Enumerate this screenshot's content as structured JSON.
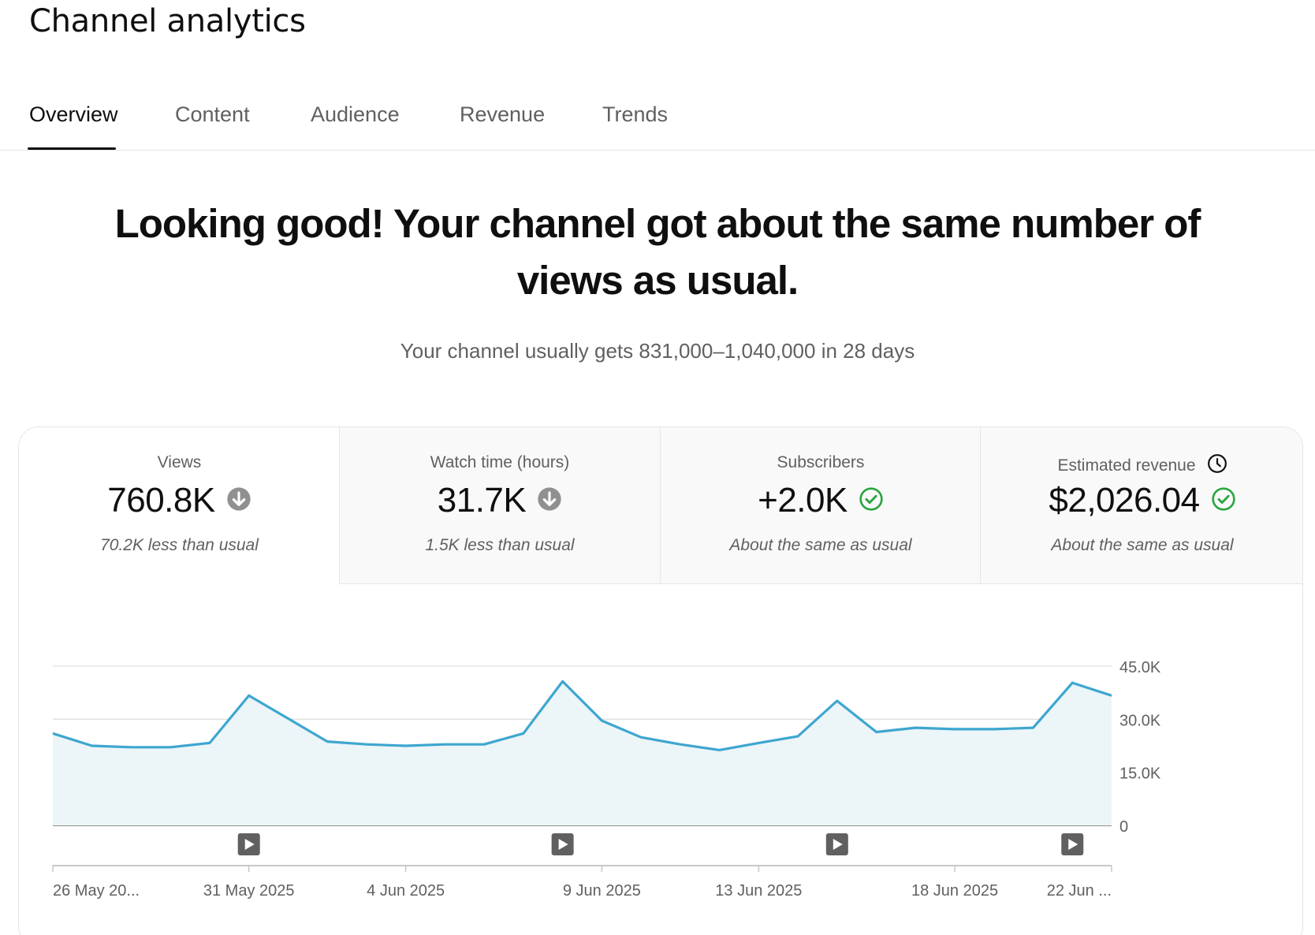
{
  "page": {
    "title": "Channel analytics"
  },
  "tabs": [
    {
      "label": "Overview",
      "active": true
    },
    {
      "label": "Content",
      "active": false
    },
    {
      "label": "Audience",
      "active": false
    },
    {
      "label": "Revenue",
      "active": false
    },
    {
      "label": "Trends",
      "active": false
    }
  ],
  "summary": {
    "headline": "Looking good! Your channel got about the same number of views as usual.",
    "subline": "Your channel usually gets 831,000–1,040,000 in 28 days"
  },
  "metrics": [
    {
      "label": "Views",
      "value": "760.8K",
      "status_icon": "arrow-down-circle-icon",
      "note": "70.2K less than usual",
      "selected": true
    },
    {
      "label": "Watch time (hours)",
      "value": "31.7K",
      "status_icon": "arrow-down-circle-icon",
      "note": "1.5K less than usual",
      "selected": false
    },
    {
      "label": "Subscribers",
      "value": "+2.0K",
      "status_icon": "check-circle-icon",
      "note": "About the same as usual",
      "selected": false
    },
    {
      "label": "Estimated revenue",
      "label_icon": "clock-icon",
      "value": "$2,026.04",
      "status_icon": "check-circle-icon",
      "note": "About the same as usual",
      "selected": false
    }
  ],
  "colors": {
    "line": "#3ea6d0",
    "fill": "#ecf5f8",
    "positive": "#2ba640",
    "negative_badge": "#909090"
  },
  "chart_data": {
    "type": "area",
    "x": [
      "26 May 2025",
      "27 May 2025",
      "28 May 2025",
      "29 May 2025",
      "30 May 2025",
      "31 May 2025",
      "1 Jun 2025",
      "2 Jun 2025",
      "3 Jun 2025",
      "4 Jun 2025",
      "5 Jun 2025",
      "6 Jun 2025",
      "7 Jun 2025",
      "8 Jun 2025",
      "9 Jun 2025",
      "10 Jun 2025",
      "11 Jun 2025",
      "12 Jun 2025",
      "13 Jun 2025",
      "14 Jun 2025",
      "15 Jun 2025",
      "16 Jun 2025",
      "17 Jun 2025",
      "18 Jun 2025",
      "19 Jun 2025",
      "20 Jun 2025",
      "21 Jun 2025",
      "22 Jun 2025"
    ],
    "series": [
      {
        "values": [
          26000,
          22500,
          22100,
          22100,
          23300,
          36700,
          30200,
          23700,
          22900,
          22500,
          22900,
          22900,
          26000,
          40700,
          29600,
          24900,
          22900,
          21300,
          23300,
          25200,
          35200,
          26400,
          27600,
          27200,
          27200,
          27600,
          40300,
          36700
        ]
      }
    ],
    "x_tick_labels": [
      "26 May 20...",
      "31 May 2025",
      "4 Jun 2025",
      "9 Jun 2025",
      "13 Jun 2025",
      "18 Jun 2025",
      "22 Jun ..."
    ],
    "x_tick_dates": [
      "26 May 2025",
      "31 May 2025",
      "4 Jun 2025",
      "9 Jun 2025",
      "13 Jun 2025",
      "18 Jun 2025",
      "22 Jun 2025"
    ],
    "y_tick_labels": [
      "0",
      "15.0K",
      "30.0K",
      "45.0K"
    ],
    "y_ticks": [
      0,
      15000,
      30000,
      45000
    ],
    "ylim": [
      0,
      45000
    ],
    "y_axis_side": "right",
    "grid": true,
    "video_markers": [
      "31 May 2025",
      "8 Jun 2025",
      "15 Jun 2025",
      "21 Jun 2025"
    ]
  }
}
